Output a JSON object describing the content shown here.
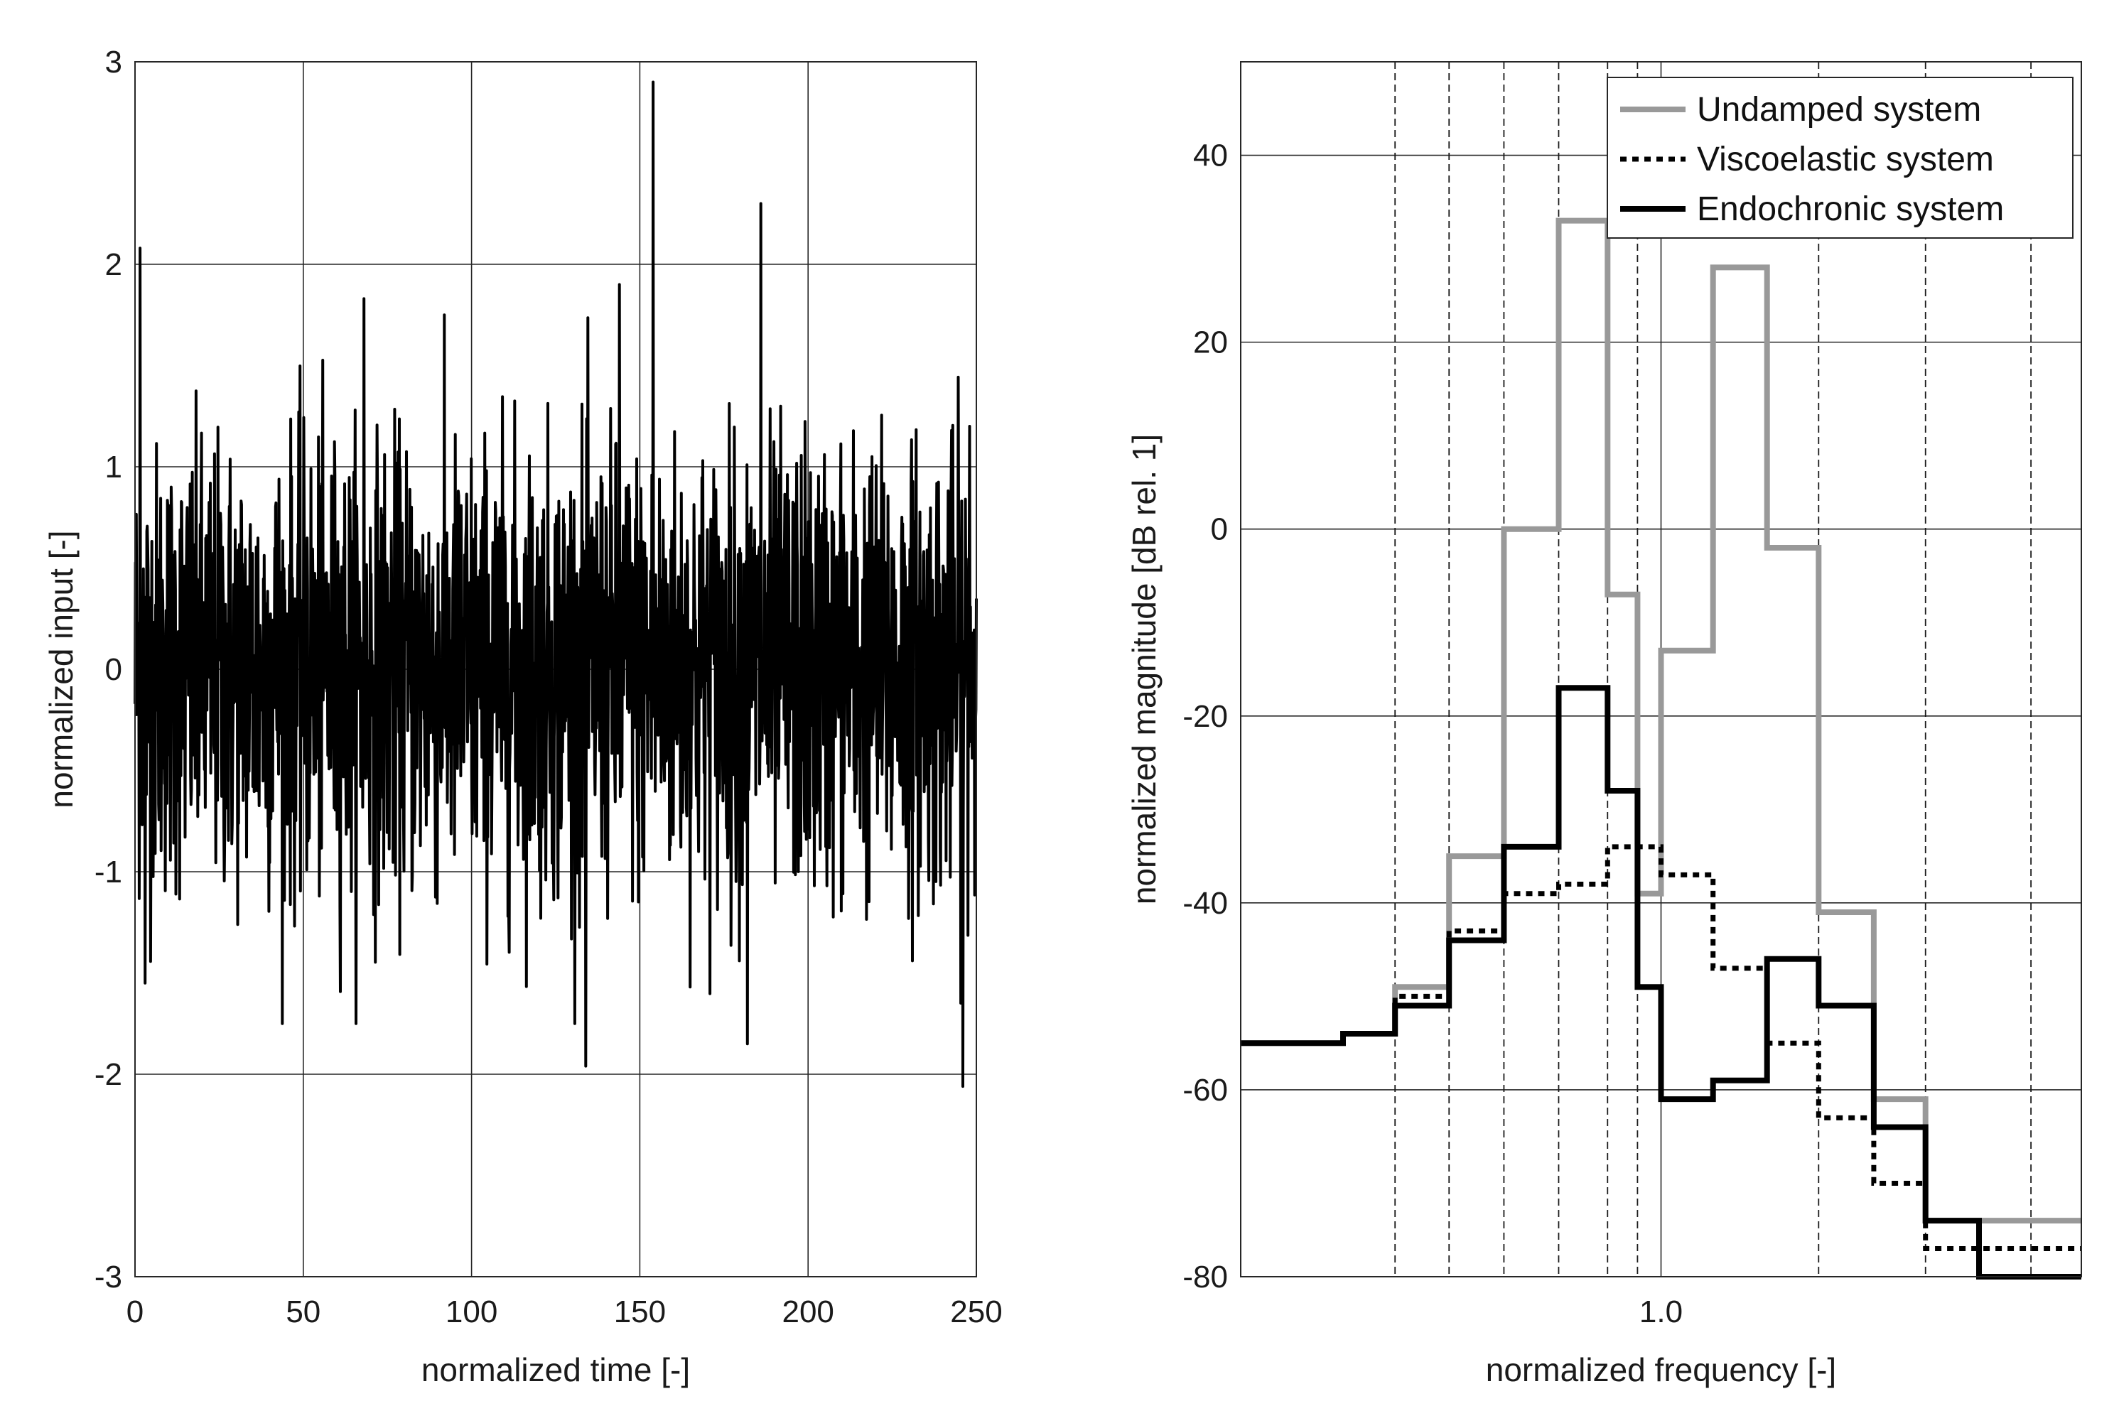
{
  "chart_data": [
    {
      "type": "line",
      "xlabel": "normalized time [-]",
      "ylabel": "normalized input [-]",
      "xlim": [
        0,
        250
      ],
      "ylim": [
        -3,
        3
      ],
      "xticks": [
        0,
        50,
        100,
        150,
        200,
        250
      ],
      "yticks": [
        -3,
        -2,
        -1,
        0,
        1,
        2,
        3
      ],
      "grid": true,
      "series": [
        {
          "color": "#000000",
          "description": "white-noise style random signal, ~2000 samples, std ~0.55",
          "samples": 2000,
          "std": 0.55,
          "spikes": [
            {
              "x": 1.5,
              "y": 2.08
            },
            {
              "x": 3,
              "y": -1.55
            },
            {
              "x": 68,
              "y": 1.83
            },
            {
              "x": 134,
              "y": -1.96
            },
            {
              "x": 144,
              "y": 1.9
            },
            {
              "x": 154,
              "y": 2.9
            },
            {
              "x": 182,
              "y": -1.85
            },
            {
              "x": 186,
              "y": 2.3
            },
            {
              "x": 246,
              "y": -2.06
            },
            {
              "x": 248,
              "y": 1.2
            }
          ]
        }
      ]
    },
    {
      "type": "line",
      "xlabel": "normalized frequency [-]",
      "ylabel": "normalized magnitude [dB rel. 1]",
      "xscale": "log",
      "xlim": [
        0.4,
        2.5
      ],
      "ylim": [
        -80,
        50
      ],
      "xticks": [
        1.0
      ],
      "xtick_labels": [
        "1.0"
      ],
      "yticks": [
        -80,
        -60,
        -40,
        -20,
        0,
        20,
        40
      ],
      "grid": true,
      "legend": "top-right",
      "band_edges": [
        0.4,
        0.5,
        0.56,
        0.63,
        0.71,
        0.8,
        0.89,
        0.95,
        1.0,
        1.12,
        1.26,
        1.41,
        1.59,
        1.78,
        2.0,
        2.24,
        2.5
      ],
      "vlines_dashed": [
        0.56,
        0.63,
        0.71,
        0.8,
        0.89,
        0.95,
        1.41,
        1.78,
        2.24
      ],
      "series": [
        {
          "name": "Undamped system",
          "color": "#999999",
          "style": "solid",
          "values": [
            -55,
            -54,
            -49,
            -35,
            0,
            33,
            -7,
            -39,
            -13,
            28,
            -2,
            -41,
            -61,
            -74,
            -74,
            -74
          ]
        },
        {
          "name": "Viscoelastic system",
          "color": "#000000",
          "style": "dotted",
          "values": [
            -55,
            -54,
            -50,
            -43,
            -39,
            -38,
            -34,
            -34,
            -37,
            -47,
            -55,
            -63,
            -70,
            -77,
            -77,
            -77
          ]
        },
        {
          "name": "Endochronic system",
          "color": "#000000",
          "style": "solid",
          "values": [
            -55,
            -54,
            -51,
            -44,
            -34,
            -17,
            -28,
            -49,
            -61,
            -59,
            -46,
            -51,
            -64,
            -74,
            -80,
            -80
          ]
        }
      ]
    }
  ]
}
